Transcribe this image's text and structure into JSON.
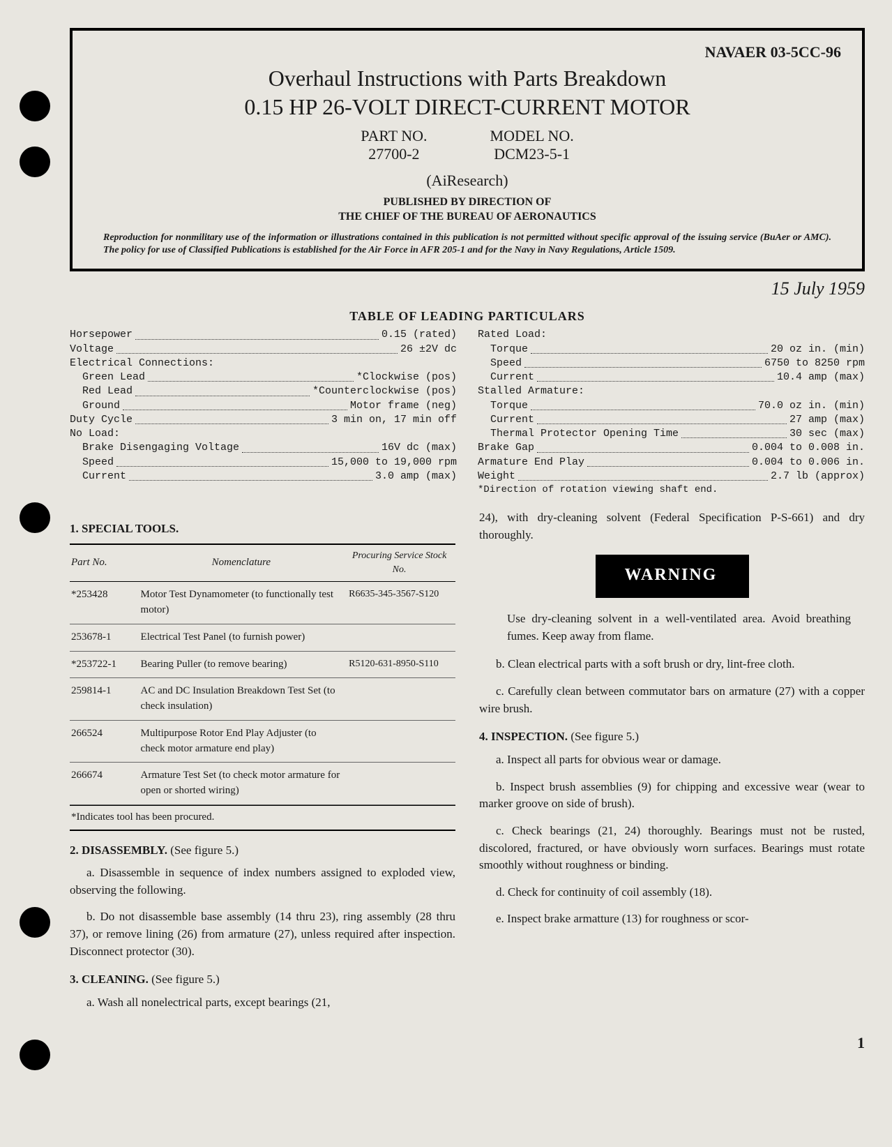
{
  "holes": [
    130,
    210,
    720,
    1300,
    1490
  ],
  "header": {
    "doc_id": "NAVAER 03-5CC-96",
    "title_line1": "Overhaul Instructions with Parts Breakdown",
    "title_line2": "0.15 HP 26-VOLT DIRECT-CURRENT MOTOR",
    "part_label": "PART NO.",
    "part_value": "27700-2",
    "model_label": "MODEL NO.",
    "model_value": "DCM23-5-1",
    "airesearch": "(AiResearch)",
    "pub_line1": "PUBLISHED BY DIRECTION OF",
    "pub_line2": "THE CHIEF OF THE BUREAU OF AERONAUTICS",
    "repro": "Reproduction for nonmilitary use of the information or illustrations contained in this publication is not permitted without specific approval of the issuing service (BuAer or AMC). The policy for use of Classified Publications is established for the Air Force in AFR 205-1 and for the Navy in Navy Regulations, Article 1509."
  },
  "date": "15 July 1959",
  "particulars_title": "TABLE OF LEADING PARTICULARS",
  "particulars": {
    "left": [
      {
        "k": "Horsepower",
        "v": "0.15 (rated)"
      },
      {
        "k": "Voltage",
        "v": "26 ±2V dc"
      },
      {
        "k": "Electrical Connections:",
        "v": "",
        "heading": true
      },
      {
        "k": "Green Lead",
        "v": "*Clockwise (pos)",
        "indent": true
      },
      {
        "k": "Red Lead",
        "v": "*Counterclockwise (pos)",
        "indent": true
      },
      {
        "k": "Ground",
        "v": "Motor frame (neg)",
        "indent": true
      },
      {
        "k": "Duty Cycle",
        "v": "3 min on, 17 min off"
      },
      {
        "k": "No Load:",
        "v": "",
        "heading": true
      },
      {
        "k": "Brake Disengaging Voltage",
        "v": "16V dc (max)",
        "indent": true
      },
      {
        "k": "Speed",
        "v": "15,000 to 19,000 rpm",
        "indent": true
      },
      {
        "k": "Current",
        "v": "3.0 amp (max)",
        "indent": true
      }
    ],
    "right": [
      {
        "k": "Rated Load:",
        "v": "",
        "heading": true
      },
      {
        "k": "Torque",
        "v": "20 oz in. (min)",
        "indent": true
      },
      {
        "k": "Speed",
        "v": "6750 to 8250 rpm",
        "indent": true
      },
      {
        "k": "Current",
        "v": "10.4 amp (max)",
        "indent": true
      },
      {
        "k": "Stalled Armature:",
        "v": "",
        "heading": true
      },
      {
        "k": "Torque",
        "v": "70.0 oz in. (min)",
        "indent": true
      },
      {
        "k": "Current",
        "v": "27 amp (max)",
        "indent": true
      },
      {
        "k": "Thermal Protector Opening Time",
        "v": "30 sec (max)",
        "indent": true
      },
      {
        "k": "Brake Gap",
        "v": "0.004 to 0.008 in."
      },
      {
        "k": "Armature End Play",
        "v": "0.004 to 0.006 in."
      },
      {
        "k": "Weight",
        "v": "2.7 lb (approx)"
      }
    ],
    "footnote": "*Direction of rotation viewing shaft end."
  },
  "sections": {
    "tools_h": "1. SPECIAL TOOLS.",
    "tools_cols": [
      "Part No.",
      "Nomenclature",
      "Procuring Service Stock No."
    ],
    "tools_rows": [
      [
        "*253428",
        "Motor Test Dynamometer (to functionally test motor)",
        "R6635-345-3567-S120"
      ],
      [
        "253678-1",
        "Electrical Test Panel (to furnish power)",
        ""
      ],
      [
        "*253722-1",
        "Bearing Puller (to remove bearing)",
        "R5120-631-8950-S110"
      ],
      [
        "259814-1",
        "AC and DC Insulation Breakdown Test Set (to check insulation)",
        ""
      ],
      [
        "266524",
        "Multipurpose Rotor End Play Adjuster (to check motor armature end play)",
        ""
      ],
      [
        "266674",
        "Armature Test Set (to check motor armature for open or shorted wiring)",
        ""
      ]
    ],
    "tools_foot": "*Indicates tool has been procured.",
    "disassembly_h": "2. DISASSEMBLY.",
    "see_fig5": "(See figure 5.)",
    "dis_a": "a. Disassemble in sequence of index numbers assigned to exploded view, observing the following.",
    "dis_b": "b. Do not disassemble base assembly (14 thru 23), ring assembly (28 thru 37), or remove lining (26) from armature (27), unless required after inspection. Disconnect protector (30).",
    "cleaning_h": "3. CLEANING.",
    "clean_a": "a. Wash all nonelectrical parts, except bearings (21,",
    "clean_a_cont": "24), with dry-cleaning solvent (Federal Specification P-S-661) and dry thoroughly.",
    "warning_label": "WARNING",
    "warning_text": "Use dry-cleaning solvent in a well-ventilated area. Avoid breathing fumes. Keep away from flame.",
    "clean_b": "b. Clean electrical parts with a soft brush or dry, lint-free cloth.",
    "clean_c": "c. Carefully clean between commutator bars on armature (27) with a copper wire brush.",
    "inspection_h": "4. INSPECTION.",
    "insp_a": "a. Inspect all parts for obvious wear or damage.",
    "insp_b": "b. Inspect brush assemblies (9) for chipping and excessive wear (wear to marker groove on side of brush).",
    "insp_c": "c. Check bearings (21, 24) thoroughly. Bearings must not be rusted, discolored, fractured, or have obviously worn surfaces. Bearings must rotate smoothly without roughness or binding.",
    "insp_d": "d. Check for continuity of coil assembly (18).",
    "insp_e": "e. Inspect brake armatture (13) for roughness or scor-"
  },
  "page_num": "1"
}
